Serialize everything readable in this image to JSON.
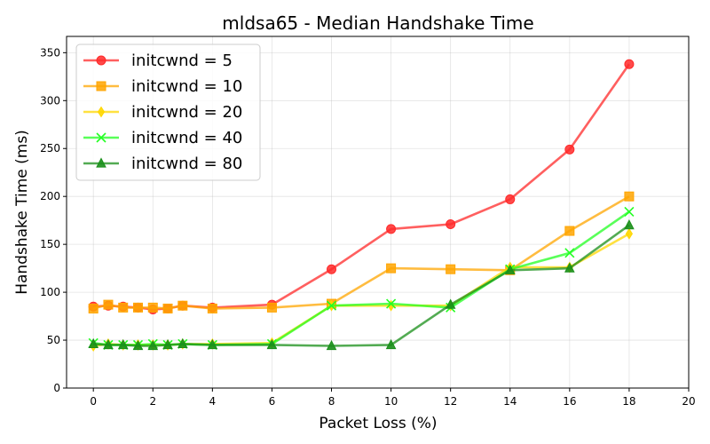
{
  "chart_data": {
    "type": "line",
    "title": "mldsa65 - Median Handshake Time",
    "xlabel": "Packet Loss (%)",
    "ylabel": "Handshake Time (ms)",
    "xlim": [
      -0.9,
      20
    ],
    "ylim": [
      0,
      367
    ],
    "xticks": [
      0,
      2,
      4,
      6,
      8,
      10,
      12,
      14,
      16,
      18,
      20
    ],
    "yticks": [
      0,
      50,
      100,
      150,
      200,
      250,
      300,
      350
    ],
    "grid": true,
    "legend_position": "top-left",
    "series": [
      {
        "name": "initcwnd = 5",
        "color": "#ff2a2a",
        "marker": "circle",
        "x": [
          0,
          0.5,
          1,
          1.5,
          2,
          2.5,
          3,
          4,
          6,
          8,
          10,
          12,
          14,
          16,
          18
        ],
        "y": [
          85,
          86,
          85,
          84,
          82,
          83,
          86,
          84,
          87,
          124,
          166,
          171,
          197,
          249,
          338
        ]
      },
      {
        "name": "initcwnd = 10",
        "color": "#ffa500",
        "marker": "square",
        "x": [
          0,
          0.5,
          1,
          1.5,
          2,
          2.5,
          3,
          4,
          6,
          8,
          10,
          12,
          14,
          16,
          18
        ],
        "y": [
          83,
          87,
          84,
          84,
          84,
          83,
          86,
          83,
          84,
          88,
          125,
          124,
          123,
          164,
          200
        ]
      },
      {
        "name": "initcwnd = 20",
        "color": "#ffd700",
        "marker": "diamond",
        "x": [
          0,
          0.5,
          1,
          1.5,
          2,
          2.5,
          3,
          4,
          6,
          8,
          10,
          12,
          14,
          16,
          18
        ],
        "y": [
          44,
          46,
          45,
          45,
          45,
          45,
          46,
          46,
          47,
          86,
          86,
          86,
          126,
          126,
          161
        ]
      },
      {
        "name": "initcwnd = 40",
        "color": "#22ff22",
        "marker": "x",
        "x": [
          0,
          0.5,
          1,
          1.5,
          2,
          2.5,
          3,
          4,
          6,
          8,
          10,
          12,
          14,
          16,
          18
        ],
        "y": [
          47,
          45,
          45,
          45,
          46,
          45,
          46,
          45,
          46,
          86,
          88,
          84,
          124,
          141,
          184
        ]
      },
      {
        "name": "initcwnd = 80",
        "color": "#1a8f1a",
        "marker": "triangle",
        "x": [
          0,
          0.5,
          1,
          1.5,
          2,
          2.5,
          3,
          4,
          6,
          8,
          10,
          12,
          14,
          16,
          18
        ],
        "y": [
          46,
          45,
          45,
          44,
          44,
          45,
          46,
          45,
          45,
          44,
          45,
          87,
          123,
          125,
          170
        ]
      }
    ]
  }
}
